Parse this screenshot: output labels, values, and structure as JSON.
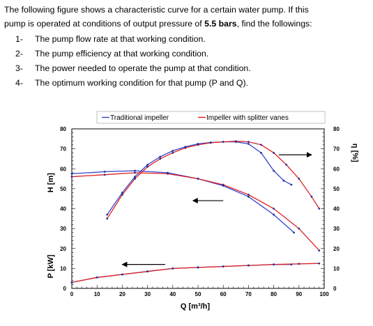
{
  "problem": {
    "line1": "The following figure shows a characteristic curve for a certain water pump. If this",
    "line2_pre": "pump is operated at conditions of output pressure of ",
    "line2_bold": "5.5 bars",
    "line2_post": ", find the followings:",
    "questions": [
      {
        "num": "1-",
        "text": "The pump flow rate at that working condition."
      },
      {
        "num": "2-",
        "text": "The pump efficiency at that working condition."
      },
      {
        "num": "3-",
        "text": "The power needed to operate the pump at that condition."
      },
      {
        "num": "4-",
        "text": "The optimum working condition for that pump (P and Q)."
      }
    ]
  },
  "colors": {
    "traditional": "#3344cc",
    "splitter": "#e02020",
    "marker": "#223399",
    "arrow": "#000000"
  },
  "chart_data": {
    "type": "line",
    "title": "",
    "xlabel": "Q [m³/h]",
    "ylabel_left_top": "H [m]",
    "ylabel_left_bottom": "P [kW]",
    "ylabel_right": "η [%]",
    "xlim": [
      0,
      100
    ],
    "ylim": [
      0,
      80
    ],
    "x_ticks": [
      "0",
      "10",
      "20",
      "30",
      "40",
      "50",
      "60",
      "70",
      "80",
      "90",
      "100"
    ],
    "y_ticks_left": [
      "0",
      "10",
      "20",
      "30",
      "40",
      "50",
      "60",
      "70",
      "80"
    ],
    "y_ticks_right": [
      "0",
      "10",
      "20",
      "30",
      "40",
      "50",
      "60",
      "70",
      "80"
    ],
    "grid": false,
    "legend": {
      "position": "top",
      "entries": [
        {
          "label": "Traditional impeller",
          "color": "#3344cc"
        },
        {
          "label": "Impeller with splitter vanes",
          "color": "#e02020"
        }
      ]
    },
    "series": [
      {
        "name": "Traditional impeller",
        "quantity": "H",
        "color": "#3344cc",
        "x": [
          0,
          13,
          25,
          38,
          50,
          60,
          70,
          80,
          88
        ],
        "y": [
          57.5,
          58.5,
          59,
          58,
          55,
          51.5,
          46,
          37,
          28
        ]
      },
      {
        "name": "Traditional impeller",
        "quantity": "η",
        "color": "#3344cc",
        "x": [
          14,
          20,
          25,
          30,
          35,
          40,
          45,
          50,
          55,
          60,
          65,
          70,
          75,
          80,
          84,
          87
        ],
        "y": [
          37,
          48,
          56,
          62,
          66,
          69,
          71,
          72.5,
          73.2,
          73.5,
          73.5,
          72.5,
          68,
          59,
          54,
          52
        ]
      },
      {
        "name": "Traditional impeller",
        "quantity": "P",
        "color": "#3344cc",
        "x": [
          0,
          10,
          20,
          30,
          40,
          50,
          60,
          70,
          80,
          87
        ],
        "y": [
          3,
          5.5,
          7,
          8.5,
          10,
          10.5,
          11,
          11.5,
          12,
          12
        ]
      },
      {
        "name": "Impeller with splitter vanes",
        "quantity": "H",
        "color": "#e02020",
        "x": [
          0,
          13,
          25,
          38,
          50,
          60,
          70,
          80,
          90,
          98
        ],
        "y": [
          56,
          57,
          58,
          57.5,
          55,
          52,
          47,
          40,
          30,
          19
        ]
      },
      {
        "name": "Impeller with splitter vanes",
        "quantity": "η",
        "color": "#e02020",
        "x": [
          14,
          20,
          25,
          30,
          35,
          40,
          45,
          50,
          55,
          60,
          65,
          70,
          75,
          80,
          85,
          90,
          95,
          98
        ],
        "y": [
          35,
          47,
          55,
          61,
          65,
          68,
          70.5,
          72,
          73,
          73.5,
          73.8,
          73.5,
          72,
          68,
          62,
          55,
          46,
          40
        ]
      },
      {
        "name": "Impeller with splitter vanes",
        "quantity": "P",
        "color": "#e02020",
        "x": [
          0,
          10,
          20,
          30,
          40,
          50,
          60,
          70,
          80,
          90,
          98
        ],
        "y": [
          3,
          5.5,
          7,
          8.5,
          10,
          10.5,
          11,
          11.5,
          12,
          12.3,
          12.5
        ]
      }
    ],
    "annotations": [
      {
        "type": "arrow",
        "direction": "right",
        "from": [
          82,
          67
        ],
        "to": [
          95,
          67
        ]
      },
      {
        "type": "arrow",
        "direction": "left",
        "from": [
          60,
          44
        ],
        "to": [
          48,
          44
        ]
      },
      {
        "type": "arrow",
        "direction": "left",
        "from": [
          37,
          12
        ],
        "to": [
          20,
          12
        ]
      }
    ]
  }
}
